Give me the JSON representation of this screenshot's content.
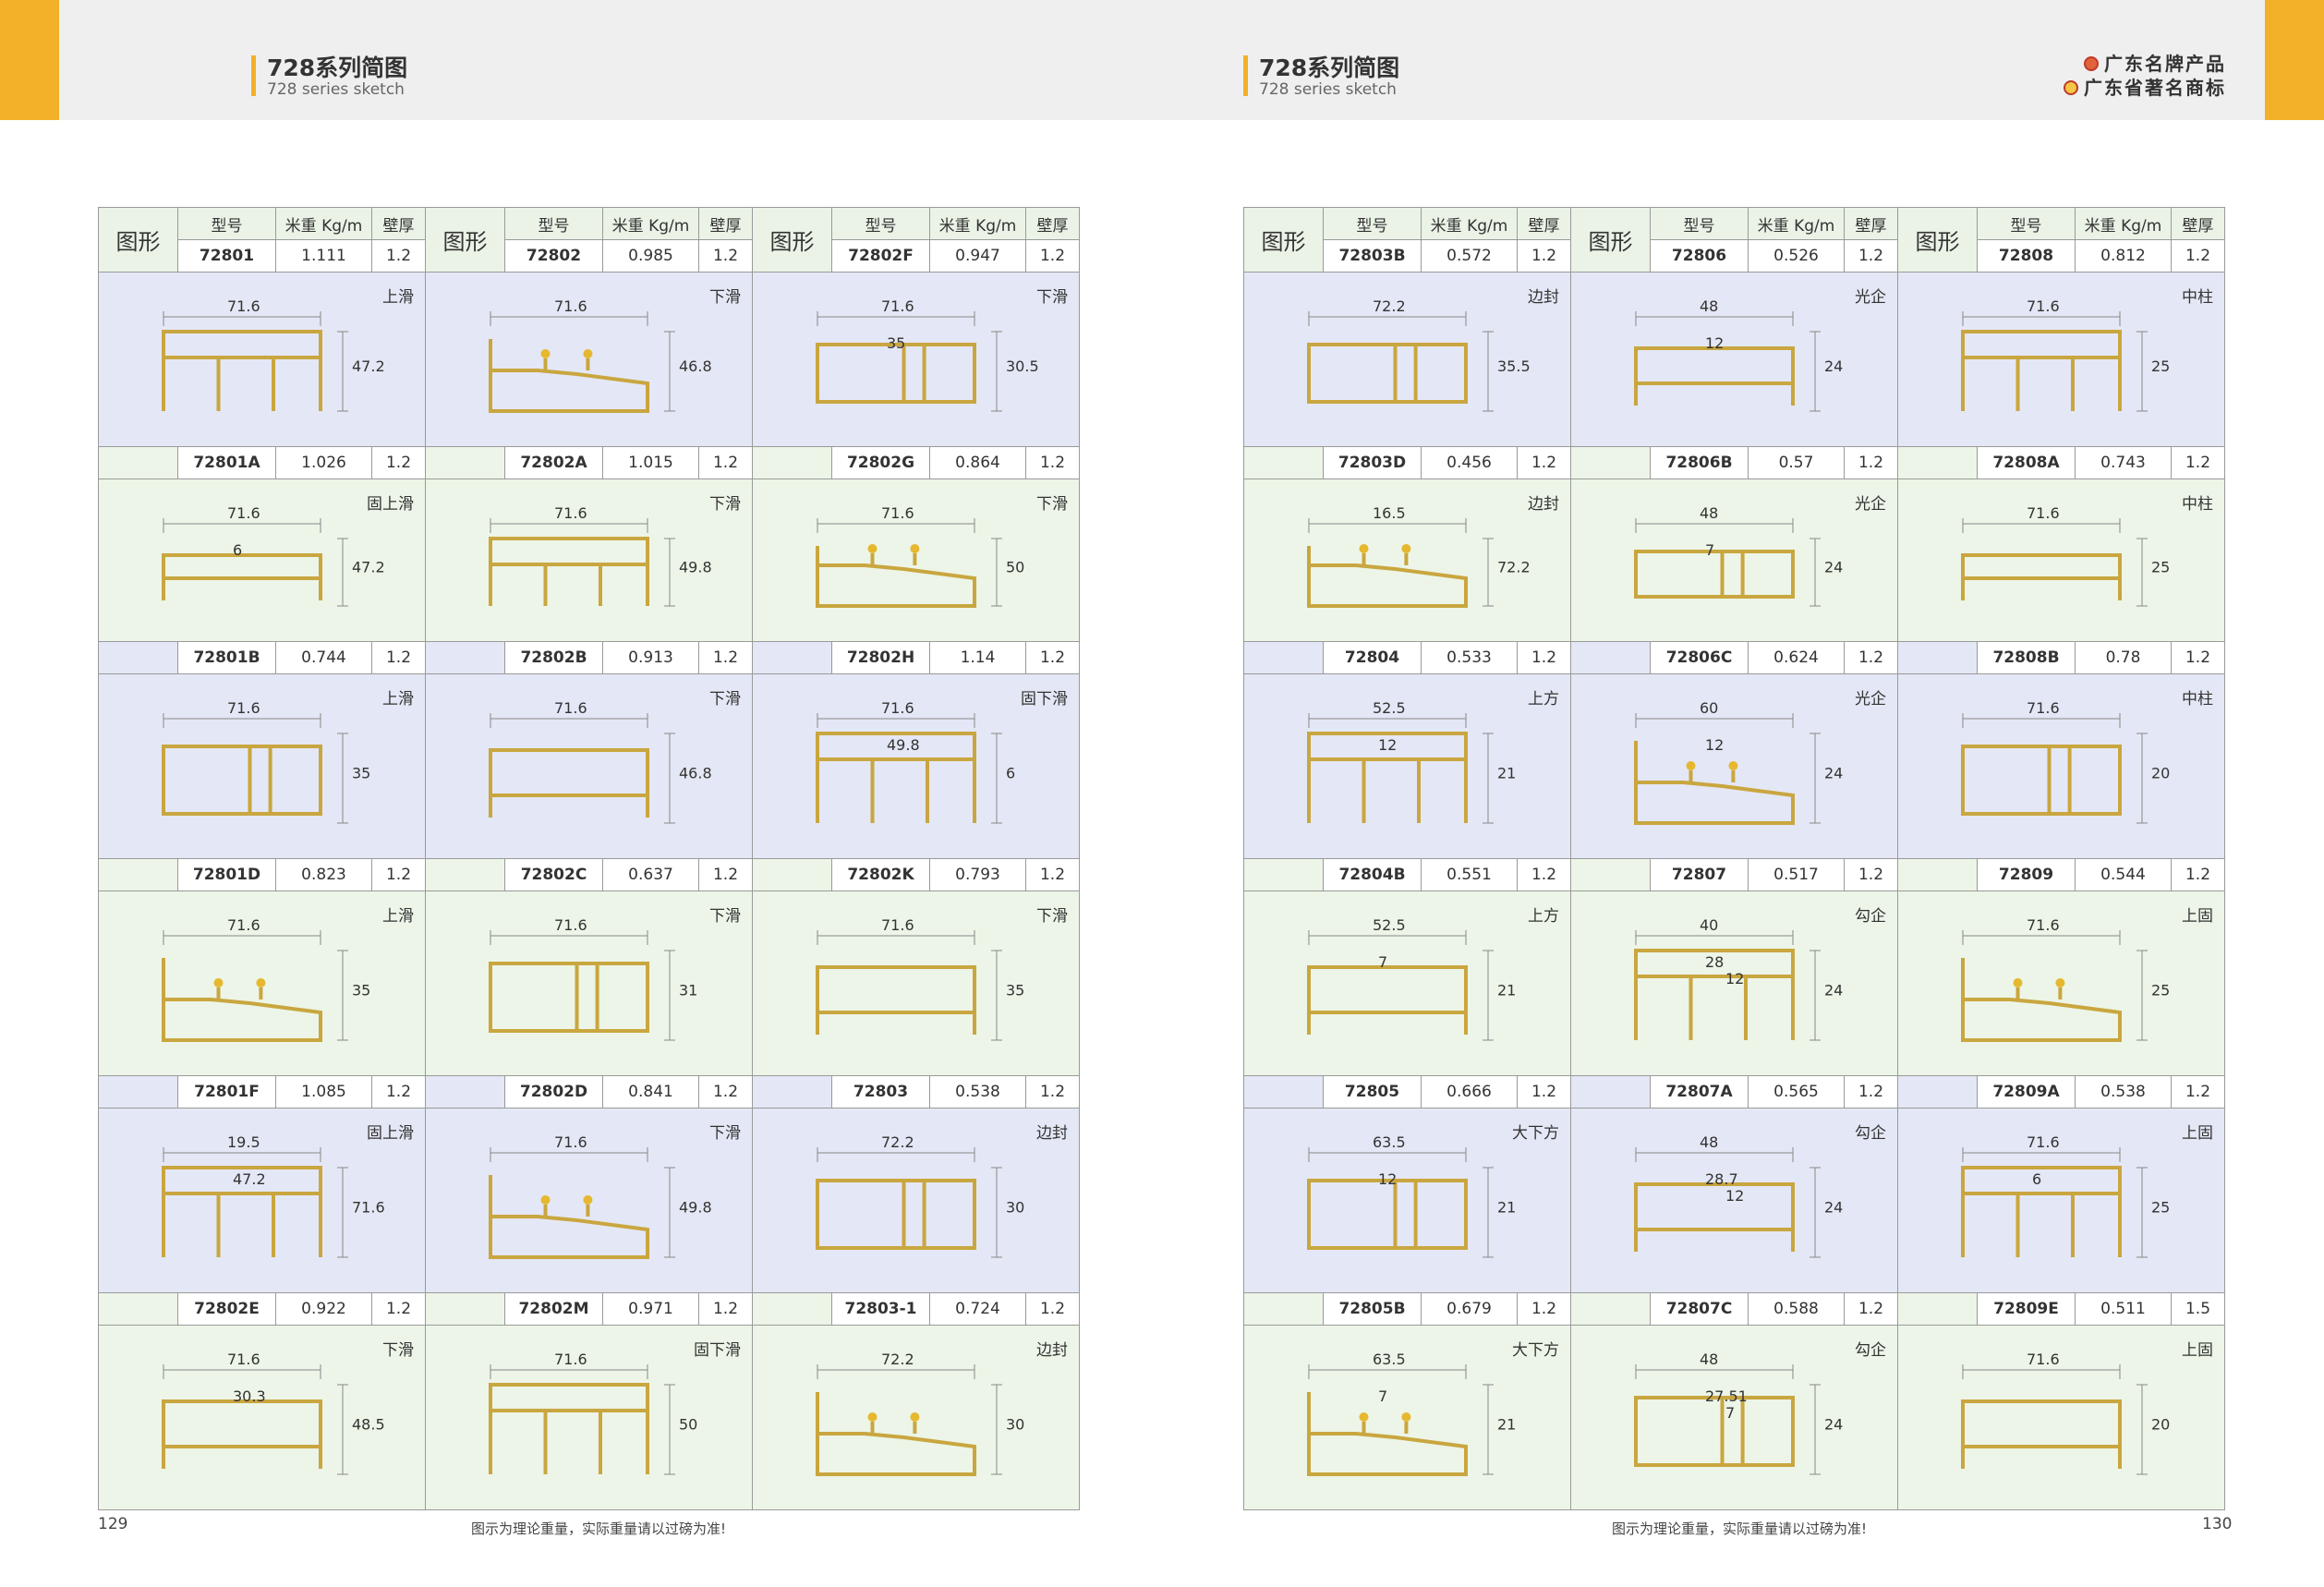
{
  "brand": {
    "line1": "广东名牌产品",
    "line2": "广东省著名商标"
  },
  "pages": [
    {
      "title": "728系列简图",
      "subtitle": "728 series sketch",
      "page_number": "129",
      "footer_note": "图示为理论重量，实际重量请以过磅为准!",
      "header": {
        "figure": "图形",
        "model": "型号",
        "weight": "米重 Kg/m",
        "thickness": "壁厚"
      },
      "grid": [
        [
          {
            "code": "72801",
            "weight": "1.111",
            "thickness": "1.2",
            "desc": "上滑",
            "dims": [
              "71.6",
              "47.2"
            ]
          },
          {
            "code": "72802",
            "weight": "0.985",
            "thickness": "1.2",
            "desc": "下滑",
            "dims": [
              "71.6",
              "46.8"
            ]
          },
          {
            "code": "72802F",
            "weight": "0.947",
            "thickness": "1.2",
            "desc": "下滑",
            "dims": [
              "71.6",
              "35",
              "30.5"
            ]
          }
        ],
        [
          {
            "code": "72801A",
            "weight": "1.026",
            "thickness": "1.2",
            "desc": "固上滑",
            "dims": [
              "71.6",
              "6",
              "47.2"
            ]
          },
          {
            "code": "72802A",
            "weight": "1.015",
            "thickness": "1.2",
            "desc": "下滑",
            "dims": [
              "71.6",
              "49.8"
            ]
          },
          {
            "code": "72802G",
            "weight": "0.864",
            "thickness": "1.2",
            "desc": "下滑",
            "dims": [
              "71.6",
              "50"
            ]
          }
        ],
        [
          {
            "code": "72801B",
            "weight": "0.744",
            "thickness": "1.2",
            "desc": "上滑",
            "dims": [
              "71.6",
              "35"
            ]
          },
          {
            "code": "72802B",
            "weight": "0.913",
            "thickness": "1.2",
            "desc": "下滑",
            "dims": [
              "71.6",
              "46.8"
            ]
          },
          {
            "code": "72802H",
            "weight": "1.14",
            "thickness": "1.2",
            "desc": "固下滑",
            "dims": [
              "71.6",
              "49.8",
              "6"
            ]
          }
        ],
        [
          {
            "code": "72801D",
            "weight": "0.823",
            "thickness": "1.2",
            "desc": "上滑",
            "dims": [
              "71.6",
              "35"
            ]
          },
          {
            "code": "72802C",
            "weight": "0.637",
            "thickness": "1.2",
            "desc": "下滑",
            "dims": [
              "71.6",
              "31"
            ]
          },
          {
            "code": "72802K",
            "weight": "0.793",
            "thickness": "1.2",
            "desc": "下滑",
            "dims": [
              "71.6",
              "35"
            ]
          }
        ],
        [
          {
            "code": "72801F",
            "weight": "1.085",
            "thickness": "1.2",
            "desc": "固上滑",
            "dims": [
              "19.5",
              "47.2",
              "71.6"
            ]
          },
          {
            "code": "72802D",
            "weight": "0.841",
            "thickness": "1.2",
            "desc": "下滑",
            "dims": [
              "71.6",
              "49.8"
            ]
          },
          {
            "code": "72803",
            "weight": "0.538",
            "thickness": "1.2",
            "desc": "边封",
            "dims": [
              "72.2",
              "30"
            ]
          }
        ],
        [
          {
            "code": "72802E",
            "weight": "0.922",
            "thickness": "1.2",
            "desc": "下滑",
            "dims": [
              "71.6",
              "30.3",
              "48.5"
            ]
          },
          {
            "code": "72802M",
            "weight": "0.971",
            "thickness": "1.2",
            "desc": "固下滑",
            "dims": [
              "71.6",
              "50"
            ]
          },
          {
            "code": "72803-1",
            "weight": "0.724",
            "thickness": "1.2",
            "desc": "边封",
            "dims": [
              "72.2",
              "30"
            ]
          }
        ]
      ]
    },
    {
      "title": "728系列简图",
      "subtitle": "728 series sketch",
      "page_number": "130",
      "footer_note": "图示为理论重量，实际重量请以过磅为准!",
      "header": {
        "figure": "图形",
        "model": "型号",
        "weight": "米重 Kg/m",
        "thickness": "壁厚"
      },
      "grid": [
        [
          {
            "code": "72803B",
            "weight": "0.572",
            "thickness": "1.2",
            "desc": "边封",
            "dims": [
              "72.2",
              "35.5"
            ]
          },
          {
            "code": "72806",
            "weight": "0.526",
            "thickness": "1.2",
            "desc": "光企",
            "dims": [
              "48",
              "12",
              "24"
            ]
          },
          {
            "code": "72808",
            "weight": "0.812",
            "thickness": "1.2",
            "desc": "中柱",
            "dims": [
              "71.6",
              "25"
            ]
          }
        ],
        [
          {
            "code": "72803D",
            "weight": "0.456",
            "thickness": "1.2",
            "desc": "边封",
            "dims": [
              "16.5",
              "72.2"
            ]
          },
          {
            "code": "72806B",
            "weight": "0.57",
            "thickness": "1.2",
            "desc": "光企",
            "dims": [
              "48",
              "7",
              "24"
            ]
          },
          {
            "code": "72808A",
            "weight": "0.743",
            "thickness": "1.2",
            "desc": "中柱",
            "dims": [
              "71.6",
              "25"
            ]
          }
        ],
        [
          {
            "code": "72804",
            "weight": "0.533",
            "thickness": "1.2",
            "desc": "上方",
            "dims": [
              "52.5",
              "12",
              "21"
            ]
          },
          {
            "code": "72806C",
            "weight": "0.624",
            "thickness": "1.2",
            "desc": "光企",
            "dims": [
              "60",
              "12",
              "24"
            ]
          },
          {
            "code": "72808B",
            "weight": "0.78",
            "thickness": "1.2",
            "desc": "中柱",
            "dims": [
              "71.6",
              "20"
            ]
          }
        ],
        [
          {
            "code": "72804B",
            "weight": "0.551",
            "thickness": "1.2",
            "desc": "上方",
            "dims": [
              "52.5",
              "7",
              "21"
            ]
          },
          {
            "code": "72807",
            "weight": "0.517",
            "thickness": "1.2",
            "desc": "勾企",
            "dims": [
              "40",
              "28",
              "12",
              "24"
            ]
          },
          {
            "code": "72809",
            "weight": "0.544",
            "thickness": "1.2",
            "desc": "上固",
            "dims": [
              "71.6",
              "25"
            ]
          }
        ],
        [
          {
            "code": "72805",
            "weight": "0.666",
            "thickness": "1.2",
            "desc": "大下方",
            "dims": [
              "63.5",
              "12",
              "21"
            ]
          },
          {
            "code": "72807A",
            "weight": "0.565",
            "thickness": "1.2",
            "desc": "勾企",
            "dims": [
              "48",
              "28.7",
              "12",
              "24"
            ]
          },
          {
            "code": "72809A",
            "weight": "0.538",
            "thickness": "1.2",
            "desc": "上固",
            "dims": [
              "71.6",
              "6",
              "25"
            ]
          }
        ],
        [
          {
            "code": "72805B",
            "weight": "0.679",
            "thickness": "1.2",
            "desc": "大下方",
            "dims": [
              "63.5",
              "7",
              "21"
            ]
          },
          {
            "code": "72807C",
            "weight": "0.588",
            "thickness": "1.2",
            "desc": "勾企",
            "dims": [
              "48",
              "27.51",
              "7",
              "24"
            ]
          },
          {
            "code": "72809E",
            "weight": "0.511",
            "thickness": "1.5",
            "desc": "上固",
            "dims": [
              "71.6",
              "20"
            ]
          }
        ]
      ]
    }
  ]
}
